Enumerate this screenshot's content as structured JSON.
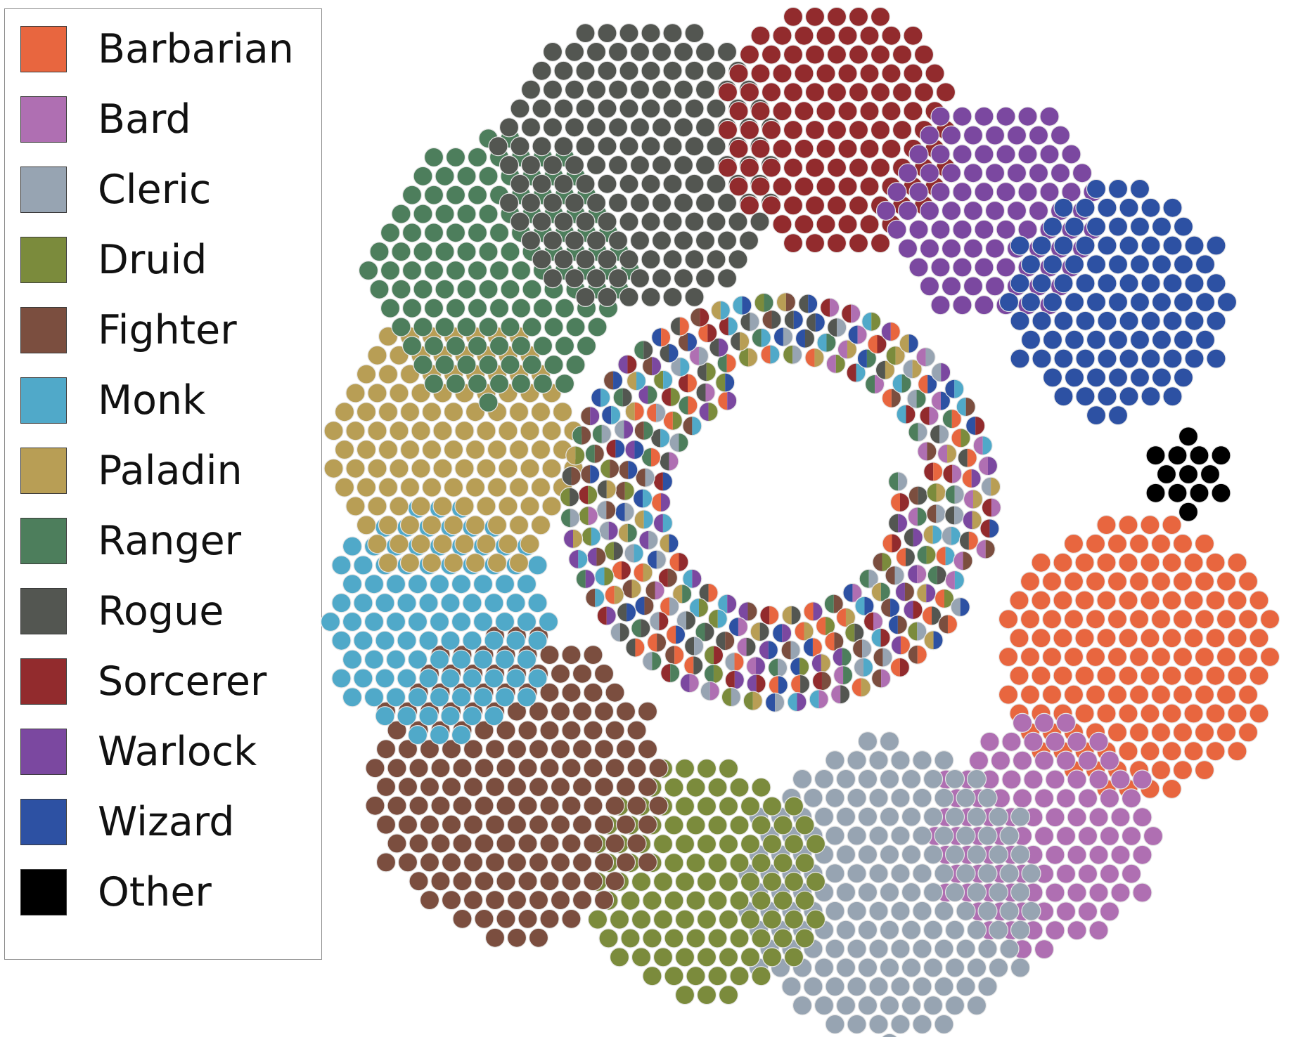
{
  "chart_data": {
    "type": "scatter",
    "subtype": "packed-bubble clusters by class",
    "legend_position": "left",
    "classes": [
      {
        "name": "Barbarian",
        "color": "#E8663F",
        "count": 150
      },
      {
        "name": "Bard",
        "color": "#AF6FB2",
        "count": 100
      },
      {
        "name": "Cleric",
        "color": "#97A4B2",
        "count": 170
      },
      {
        "name": "Druid",
        "color": "#7B8B3C",
        "count": 110
      },
      {
        "name": "Fighter",
        "color": "#7B4E3F",
        "count": 175
      },
      {
        "name": "Monk",
        "color": "#50A9C9",
        "count": 105
      },
      {
        "name": "Paladin",
        "color": "#B89E55",
        "count": 125
      },
      {
        "name": "Ranger",
        "color": "#4D7E5C",
        "count": 130
      },
      {
        "name": "Rogue",
        "color": "#535651",
        "count": 160
      },
      {
        "name": "Sorcerer",
        "color": "#922B2D",
        "count": 115
      },
      {
        "name": "Warlock",
        "color": "#7B48A0",
        "count": 90
      },
      {
        "name": "Wizard",
        "color": "#2D51A3",
        "count": 100
      },
      {
        "name": "Other",
        "color": "#000000",
        "count": 13
      }
    ],
    "multiclass_count": 260
  }
}
